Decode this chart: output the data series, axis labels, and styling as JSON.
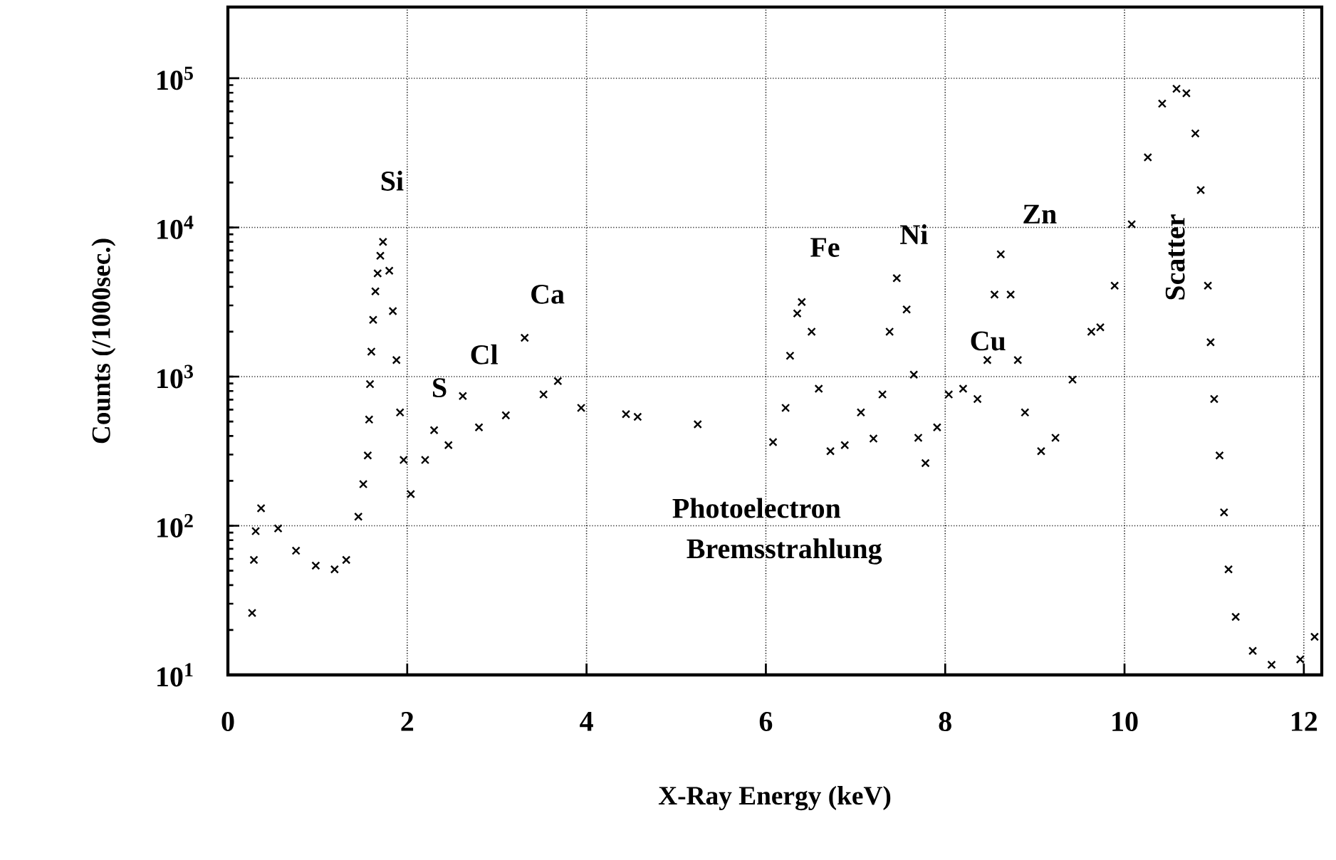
{
  "chart_data": {
    "type": "scatter",
    "xlabel": "X-Ray Energy  (keV)",
    "ylabel": "Counts  (/1000sec.)",
    "x": [
      0.27,
      0.29,
      0.31,
      0.37,
      0.56,
      0.76,
      0.98,
      1.19,
      1.32,
      1.455,
      1.51,
      1.56,
      1.575,
      1.585,
      1.6,
      1.62,
      1.645,
      1.67,
      1.7,
      1.73,
      1.8,
      1.84,
      1.88,
      1.92,
      1.96,
      2.04,
      2.2,
      2.3,
      2.46,
      2.62,
      2.8,
      3.1,
      3.31,
      3.52,
      3.68,
      3.94,
      4.44,
      4.57,
      5.24,
      6.08,
      6.22,
      6.27,
      6.35,
      6.4,
      6.51,
      6.59,
      6.72,
      6.88,
      7.06,
      7.2,
      7.3,
      7.38,
      7.46,
      7.57,
      7.65,
      7.7,
      7.78,
      7.91,
      8.04,
      8.2,
      8.36,
      8.47,
      8.55,
      8.62,
      8.73,
      8.81,
      8.89,
      9.07,
      9.23,
      9.42,
      9.63,
      9.73,
      9.89,
      10.08,
      10.26,
      10.42,
      10.58,
      10.69,
      10.79,
      10.85,
      10.93,
      10.96,
      11.0,
      11.06,
      11.11,
      11.16,
      11.24,
      11.43,
      11.64,
      11.96,
      12.12
    ],
    "values": [
      26,
      59,
      92,
      131,
      96,
      68,
      54,
      51,
      59,
      115,
      190,
      296,
      515,
      890,
      1470,
      2400,
      3730,
      4920,
      6460,
      8000,
      5130,
      2750,
      1290,
      575,
      276,
      163,
      276,
      437,
      347,
      741,
      457,
      550,
      1820,
      759,
      933,
      617,
      560,
      537,
      479,
      364,
      617,
      1380,
      2650,
      3160,
      2000,
      830,
      316,
      347,
      575,
      384,
      759,
      2000,
      4570,
      2820,
      1030,
      389,
      263,
      457,
      759,
      830,
      708,
      1290,
      3550,
      6610,
      3550,
      1290,
      575,
      316,
      389,
      955,
      2000,
      2140,
      4070,
      10500,
      29500,
      67600,
      85100,
      79400,
      42700,
      17800,
      4070,
      1700,
      708,
      296,
      123,
      51,
      24.5,
      14.5,
      11.7,
      12.7,
      18
    ],
    "color": "#000000",
    "marker": "cross",
    "log": "y",
    "grid": true,
    "xlim": [
      0,
      12.2
    ],
    "ylim": [
      10,
      300000
    ],
    "xticks": [
      0,
      2,
      4,
      6,
      8,
      10,
      12
    ],
    "yticks": [
      {
        "value": 10,
        "label": "10$^{1}$"
      },
      {
        "value": 100,
        "label": "10$^{2}$"
      },
      {
        "value": 1000,
        "label": "10$^{3}$"
      },
      {
        "value": 10000,
        "label": "10$^{4}$"
      },
      {
        "value": 100000,
        "label": "10$^{5}$"
      }
    ],
    "annotations": [
      "Si",
      "S",
      "Cl",
      "Ca",
      "Fe",
      "Ni",
      "Cu",
      "Zn",
      "Photoelectron",
      "Bremsstrahlung",
      "Scatter"
    ]
  }
}
